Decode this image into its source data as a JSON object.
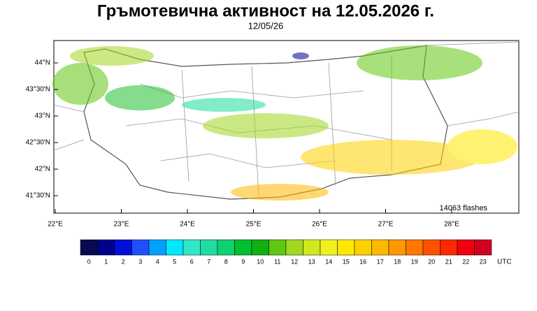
{
  "header": {
    "title": "Гръмотевична активност на 12.05.2026 г.",
    "date": "12/05/26"
  },
  "map": {
    "lat_labels": [
      "44°N",
      "43°30'N",
      "43°N",
      "42°30'N",
      "42°N",
      "41°30'N"
    ],
    "lon_labels": [
      "22°E",
      "23°E",
      "24°E",
      "25°E",
      "26°E",
      "27°E",
      "28°E"
    ],
    "flash_count": "14063 flashes"
  },
  "colorbar": {
    "colors": [
      "#0a0a50",
      "#00008c",
      "#0010d8",
      "#1e50ff",
      "#00a0ff",
      "#00e8ff",
      "#30e8c8",
      "#20dca0",
      "#10d070",
      "#00c030",
      "#10b010",
      "#60c810",
      "#a0d820",
      "#d0e820",
      "#f0f020",
      "#ffe800",
      "#ffd000",
      "#ffb800",
      "#ff9800",
      "#ff7800",
      "#ff5000",
      "#ff2800",
      "#f00010",
      "#d00020"
    ],
    "labels": [
      "0",
      "1",
      "2",
      "3",
      "4",
      "5",
      "6",
      "7",
      "8",
      "9",
      "10",
      "11",
      "12",
      "13",
      "14",
      "15",
      "16",
      "17",
      "18",
      "19",
      "20",
      "21",
      "22",
      "23"
    ],
    "unit": "UTC"
  }
}
